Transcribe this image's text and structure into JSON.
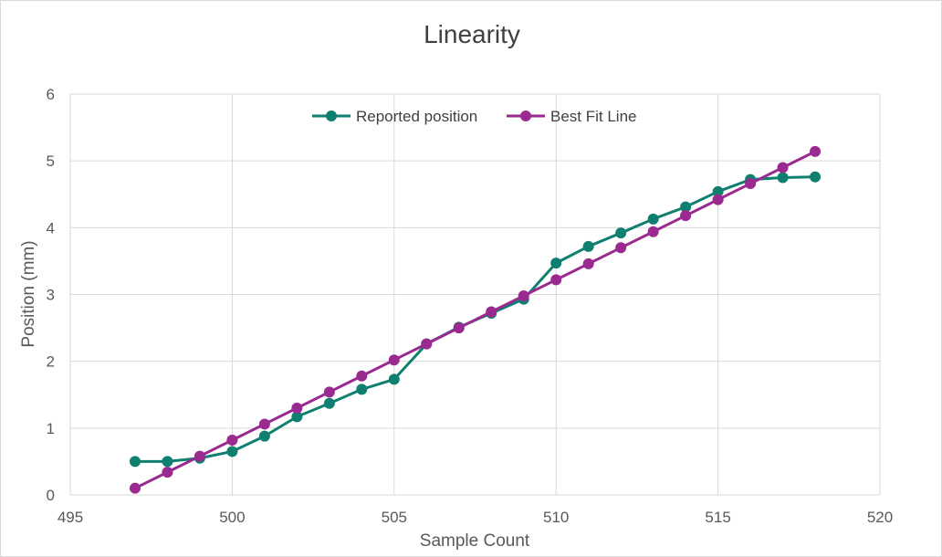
{
  "chart_data": {
    "type": "line",
    "title": "Linearity",
    "xlabel": "Sample Count",
    "ylabel": "Position (mm)",
    "xlim": [
      495,
      520
    ],
    "ylim": [
      0,
      6
    ],
    "x_ticks": [
      495,
      500,
      505,
      510,
      515,
      520
    ],
    "y_ticks": [
      0,
      1,
      2,
      3,
      4,
      5,
      6
    ],
    "grid": true,
    "legend_position": "top",
    "x": [
      497,
      498,
      499,
      500,
      501,
      502,
      503,
      504,
      505,
      506,
      507,
      508,
      509,
      510,
      511,
      512,
      513,
      514,
      515,
      516,
      517,
      518
    ],
    "series": [
      {
        "name": "Reported position",
        "color": "#0f7f70",
        "values": [
          0.5,
          0.5,
          0.55,
          0.65,
          0.88,
          1.17,
          1.37,
          1.58,
          1.73,
          2.26,
          2.51,
          2.72,
          2.93,
          3.47,
          3.72,
          3.92,
          4.13,
          4.31,
          4.54,
          4.72,
          4.75,
          4.76
        ]
      },
      {
        "name": "Best Fit Line",
        "color": "#9a2a8f",
        "values": [
          0.1,
          0.34,
          0.58,
          0.82,
          1.06,
          1.3,
          1.54,
          1.78,
          2.02,
          2.26,
          2.5,
          2.74,
          2.98,
          3.22,
          3.46,
          3.7,
          3.94,
          4.18,
          4.42,
          4.66,
          4.9,
          5.14
        ]
      }
    ]
  }
}
